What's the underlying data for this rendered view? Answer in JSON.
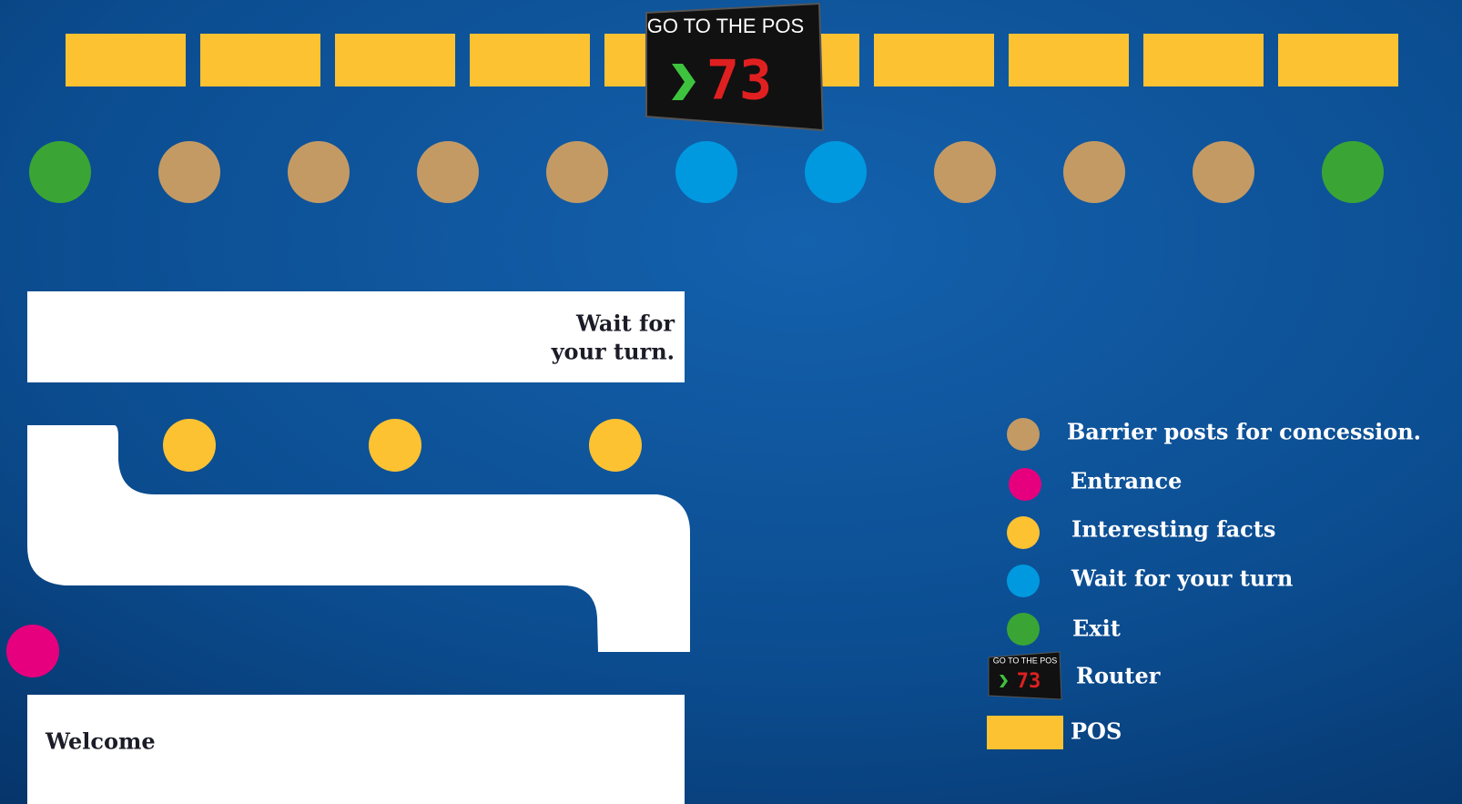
{
  "router": {
    "header": "GO TO THE POS",
    "number": "73"
  },
  "wait_box": {
    "lines": [
      "Wait for",
      "your turn."
    ]
  },
  "welcome_box": {
    "text": "Welcome"
  },
  "legend": {
    "items": [
      "Barrier posts for concession.",
      "Entrance",
      "Interesting facts",
      "Wait for your turn",
      "Exit",
      "Router",
      "POS"
    ]
  }
}
